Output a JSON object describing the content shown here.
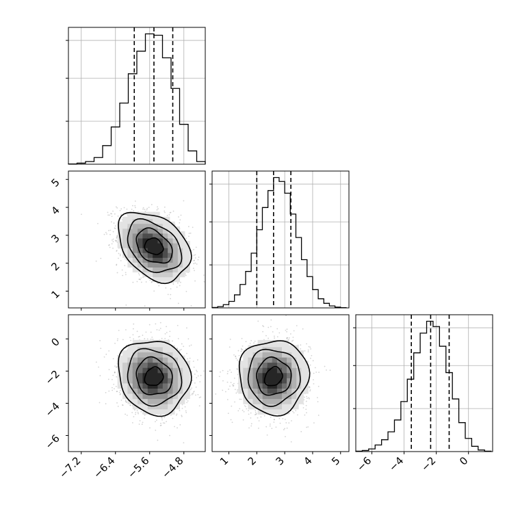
{
  "chart_data": {
    "type": "corner",
    "parameters": [
      {
        "range": [
          -7.5,
          -4.3
        ],
        "ticks": [
          -7.2,
          -6.4,
          -5.6,
          -4.8
        ],
        "tick_labels": [
          "−7.2",
          "−6.4",
          "−5.6",
          "−4.8"
        ],
        "quantiles": [
          -5.96,
          -5.5,
          -5.06
        ],
        "mean": -5.5,
        "sd": 0.42
      },
      {
        "range": [
          0.4,
          5.3
        ],
        "ticks": [
          1,
          2,
          3,
          4,
          5
        ],
        "tick_labels": [
          "1",
          "2",
          "3",
          "4",
          "5"
        ],
        "quantiles": [
          2.0,
          2.6,
          3.22
        ],
        "mean": 2.6,
        "sd": 0.62
      },
      {
        "range": [
          -7.0,
          1.5
        ],
        "ticks": [
          -6,
          -4,
          -2,
          0
        ],
        "tick_labels": [
          "−6",
          "−4",
          "−2",
          "0"
        ],
        "quantiles": [
          -3.55,
          -2.35,
          -1.2
        ],
        "mean": -2.35,
        "sd": 1.15
      }
    ],
    "histograms": [
      {
        "param": 0,
        "bin_edges": [
          -7.5,
          -7.3,
          -7.1,
          -6.9,
          -6.7,
          -6.5,
          -6.3,
          -6.1,
          -5.9,
          -5.7,
          -5.5,
          -5.3,
          -5.1,
          -4.9,
          -4.7,
          -4.5,
          -4.3
        ],
        "counts": [
          0.002,
          0.008,
          0.02,
          0.05,
          0.14,
          0.28,
          0.46,
          0.68,
          0.85,
          0.98,
          0.97,
          0.8,
          0.57,
          0.3,
          0.1,
          0.02
        ]
      },
      {
        "param": 1,
        "bin_edges": [
          0.4,
          0.6,
          0.8,
          1.0,
          1.2,
          1.4,
          1.6,
          1.8,
          2.0,
          2.2,
          2.4,
          2.6,
          2.8,
          3.0,
          3.2,
          3.4,
          3.6,
          3.8,
          4.0,
          4.2,
          4.4,
          4.6,
          4.8,
          5.0,
          5.2
        ],
        "counts": [
          0.003,
          0.01,
          0.025,
          0.05,
          0.1,
          0.18,
          0.28,
          0.42,
          0.6,
          0.77,
          0.9,
          1.0,
          0.97,
          0.88,
          0.72,
          0.54,
          0.37,
          0.24,
          0.14,
          0.07,
          0.035,
          0.015,
          0.006,
          0.002
        ]
      },
      {
        "param": 2,
        "bin_edges": [
          -7.0,
          -6.6,
          -6.2,
          -5.8,
          -5.4,
          -5.0,
          -4.6,
          -4.2,
          -3.8,
          -3.4,
          -3.0,
          -2.6,
          -2.2,
          -1.8,
          -1.4,
          -1.0,
          -0.6,
          -0.2,
          0.2,
          0.6,
          1.0,
          1.4
        ],
        "counts": [
          0.003,
          0.008,
          0.02,
          0.05,
          0.09,
          0.15,
          0.24,
          0.38,
          0.55,
          0.75,
          0.9,
          0.99,
          0.95,
          0.8,
          0.6,
          0.4,
          0.22,
          0.1,
          0.04,
          0.012,
          0.003
        ]
      }
    ],
    "pairs": [
      {
        "x_param": 0,
        "y_param": 1,
        "correlation": -0.35
      },
      {
        "x_param": 0,
        "y_param": 2,
        "correlation": -0.1
      },
      {
        "x_param": 1,
        "y_param": 2,
        "correlation": 0.0
      }
    ],
    "colors": {
      "line": "#000000",
      "grid": "#b0b0b0",
      "points": "#808080"
    }
  }
}
